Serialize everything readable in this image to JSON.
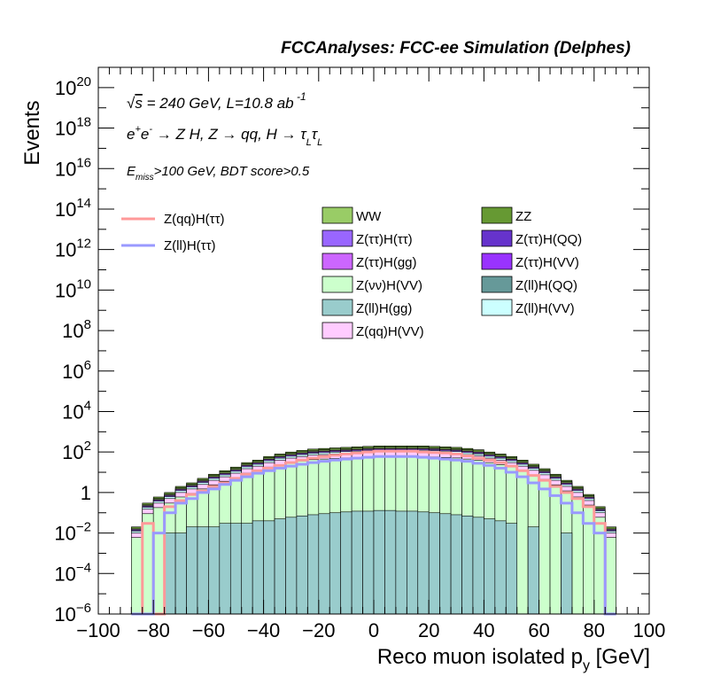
{
  "chart_data": {
    "type": "histogram",
    "title": "FCCAnalyses: FCC-ee Simulation (Delphes)",
    "xlabel": "Reco muon isolated p_y [GeV]",
    "ylabel": "Events",
    "xlim": [
      -100,
      100
    ],
    "ylim": [
      1e-06,
      1e+21
    ],
    "yscale": "log",
    "x_ticks": [
      "−100",
      "−80",
      "−60",
      "−40",
      "−20",
      "0",
      "20",
      "40",
      "60",
      "80",
      "100"
    ],
    "y_ticks": [
      {
        "base": "10",
        "exp": "−6"
      },
      {
        "base": "10",
        "exp": "−4"
      },
      {
        "base": "10",
        "exp": "−2"
      },
      {
        "base": "1",
        "exp": ""
      },
      {
        "base": "10",
        "exp": "2"
      },
      {
        "base": "10",
        "exp": "4"
      },
      {
        "base": "10",
        "exp": "6"
      },
      {
        "base": "10",
        "exp": "8"
      },
      {
        "base": "10",
        "exp": "10"
      },
      {
        "base": "10",
        "exp": "12"
      },
      {
        "base": "10",
        "exp": "14"
      },
      {
        "base": "10",
        "exp": "16"
      },
      {
        "base": "10",
        "exp": "18"
      },
      {
        "base": "10",
        "exp": "20"
      }
    ],
    "annotations": [
      "√s = 240 GeV, L=10.8 ab⁻¹",
      "e⁺e⁻ → Z H, Z → qq, H → τLτL",
      "Emiss>100 GeV, BDT score>0.5"
    ],
    "bin_width": 4,
    "bin_edges_range": [
      -88,
      88
    ],
    "stack_order_bottom_to_top": [
      "Z(ll)H(gg)",
      "Z(νν)H(VV)",
      "Z(qq)H(VV)",
      "Z(ll)H(VV)",
      "Z(ττ)H(ττ)",
      "Z(ττ)H(gg)",
      "WW",
      "ZZ"
    ],
    "series": [
      {
        "name": "WW",
        "color": "#99cc66",
        "kind": "stacked"
      },
      {
        "name": "ZZ",
        "color": "#669933",
        "kind": "stacked"
      },
      {
        "name": "Z(ττ)H(ττ)",
        "color": "#9966ff",
        "kind": "stacked"
      },
      {
        "name": "Z(ττ)H(QQ)",
        "color": "#6633cc",
        "kind": "stacked"
      },
      {
        "name": "Z(ττ)H(gg)",
        "color": "#cc66ff",
        "kind": "stacked"
      },
      {
        "name": "Z(ττ)H(VV)",
        "color": "#9933ff",
        "kind": "stacked"
      },
      {
        "name": "Z(νν)H(VV)",
        "color": "#ccffcc",
        "kind": "stacked"
      },
      {
        "name": "Z(ll)H(QQ)",
        "color": "#669999",
        "kind": "stacked"
      },
      {
        "name": "Z(ll)H(gg)",
        "color": "#99cccc",
        "kind": "stacked"
      },
      {
        "name": "Z(ll)H(VV)",
        "color": "#ccffff",
        "kind": "stacked"
      },
      {
        "name": "Z(qq)H(VV)",
        "color": "#ffccff",
        "kind": "stacked"
      },
      {
        "name": "Z(qq)H(ττ)",
        "color": "#ff9999",
        "kind": "line"
      },
      {
        "name": "Z(ll)H(ττ)",
        "color": "#9999ff",
        "kind": "line"
      }
    ],
    "bins_total_stack": [
      0.02,
      0.3,
      0.6,
      1.0,
      2.0,
      3.0,
      5.0,
      8.0,
      12.0,
      18.0,
      30.0,
      40.0,
      60.0,
      80.0,
      100.0,
      120.0,
      140.0,
      150.0,
      160.0,
      170.0,
      180.0,
      190.0,
      200.0,
      200.0,
      200.0,
      200.0,
      200.0,
      190.0,
      180.0,
      170.0,
      150.0,
      130.0,
      100.0,
      80.0,
      60.0,
      40.0,
      25.0,
      15.0,
      8.0,
      4.0,
      2.0,
      0.8,
      0.2,
      0.02
    ],
    "bins_zllhgg": [
      0.0,
      0.0,
      0.0,
      0.01,
      0.01,
      0.02,
      0.02,
      0.02,
      0.03,
      0.03,
      0.03,
      0.04,
      0.04,
      0.05,
      0.06,
      0.07,
      0.08,
      0.09,
      0.1,
      0.11,
      0.12,
      0.12,
      0.13,
      0.13,
      0.12,
      0.12,
      0.11,
      0.1,
      0.09,
      0.08,
      0.07,
      0.06,
      0.05,
      0.04,
      0.03,
      0.0,
      0.02,
      0.0,
      0.0,
      0.01,
      0.0,
      0.0,
      0.0,
      0.0
    ],
    "bins_zqqhtautau": [
      0.0,
      0.03,
      0.0,
      0.2,
      0.4,
      0.8,
      1.2,
      2.0,
      3.0,
      5.0,
      8.0,
      12.0,
      16.0,
      22.0,
      30.0,
      40.0,
      50.0,
      60.0,
      70.0,
      80.0,
      90.0,
      100.0,
      110.0,
      110.0,
      110.0,
      110.0,
      100.0,
      95.0,
      90.0,
      80.0,
      65.0,
      50.0,
      40.0,
      30.0,
      20.0,
      12.0,
      7.0,
      4.0,
      2.0,
      1.0,
      0.5,
      0.2,
      0.03,
      0.0
    ],
    "bins_zllhtautau": [
      0.0,
      0.0,
      0.01,
      0.1,
      0.3,
      0.5,
      1.0,
      1.5,
      2.5,
      4.0,
      6.0,
      9.0,
      12.0,
      16.0,
      20.0,
      25.0,
      30.0,
      35.0,
      40.0,
      45.0,
      50.0,
      55.0,
      60.0,
      60.0,
      60.0,
      60.0,
      55.0,
      50.0,
      45.0,
      40.0,
      35.0,
      28.0,
      22.0,
      16.0,
      10.0,
      6.0,
      3.0,
      1.5,
      0.7,
      0.3,
      0.1,
      0.03,
      0.01,
      0.0
    ]
  }
}
